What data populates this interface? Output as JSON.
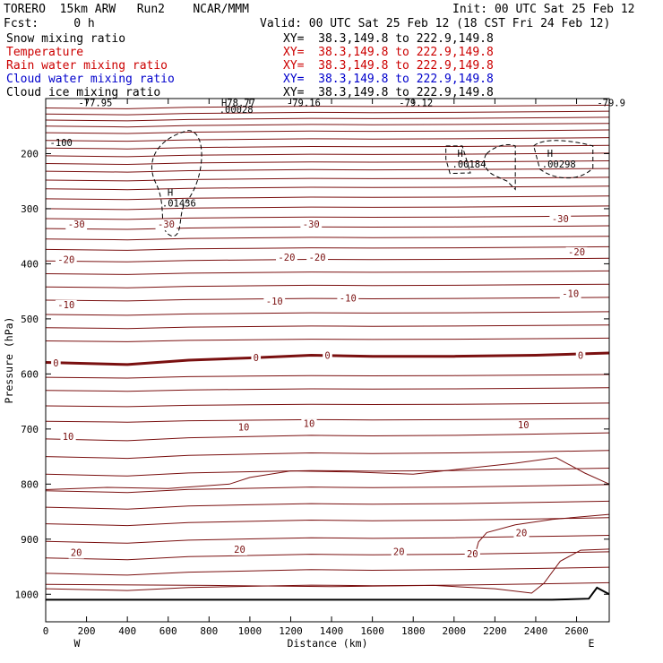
{
  "header": {
    "model": "TORERO  15km ARW   Run2    NCAR/MMM",
    "init": "Init: 00 UTC Sat 25 Feb 12",
    "fcst": "Fcst:     0 h",
    "valid": "Valid: 00 UTC Sat 25 Feb 12 (18 CST Fri 24 Feb 12)"
  },
  "fields": [
    {
      "name": "Snow mixing ratio",
      "xy": "XY=  38.3,149.8 to 222.9,149.8",
      "color": "#000000"
    },
    {
      "name": "Temperature",
      "xy": "XY=  38.3,149.8 to 222.9,149.8",
      "color": "#cc0000"
    },
    {
      "name": "Rain water mixing ratio",
      "xy": "XY=  38.3,149.8 to 222.9,149.8",
      "color": "#cc0000"
    },
    {
      "name": "Cloud water mixing ratio",
      "xy": "XY=  38.3,149.8 to 222.9,149.8",
      "color": "#0000cc"
    },
    {
      "name": "Cloud ice mixing ratio",
      "xy": "XY=  38.3,149.8 to 222.9,149.8",
      "color": "#000000"
    }
  ],
  "colors": {
    "temperature": "#7a1010",
    "ice": "#000000",
    "terrain": "#000000"
  },
  "chart_data": {
    "type": "contour",
    "xlabel": "Distance (km)",
    "ylabel": "Pressure (hPa)",
    "xlim": [
      0,
      2760
    ],
    "ylim": [
      1050,
      100
    ],
    "x_ticks": [
      0,
      200,
      400,
      600,
      800,
      1000,
      1200,
      1400,
      1600,
      1800,
      2000,
      2200,
      2400,
      2600
    ],
    "y_ticks": [
      200,
      300,
      400,
      500,
      600,
      700,
      800,
      900,
      1000
    ],
    "x_end_labels": {
      "left": "W",
      "right": "E"
    },
    "zero_isotherm": [
      [
        0,
        579
      ],
      [
        400,
        583
      ],
      [
        700,
        575
      ],
      [
        1000,
        571
      ],
      [
        1300,
        566
      ],
      [
        1600,
        568
      ],
      [
        2000,
        568
      ],
      [
        2400,
        566
      ],
      [
        2760,
        562
      ]
    ],
    "temperature_labels": [
      {
        "x": 150,
        "p": 328,
        "text": "-30"
      },
      {
        "x": 590,
        "p": 328,
        "text": "-30"
      },
      {
        "x": 1300,
        "p": 328,
        "text": "-30"
      },
      {
        "x": 2520,
        "p": 318,
        "text": "-30"
      },
      {
        "x": 100,
        "p": 392,
        "text": "-20"
      },
      {
        "x": 1180,
        "p": 388,
        "text": "-20"
      },
      {
        "x": 1330,
        "p": 388,
        "text": "-20"
      },
      {
        "x": 2600,
        "p": 378,
        "text": "-20"
      },
      {
        "x": 100,
        "p": 474,
        "text": "-10"
      },
      {
        "x": 1120,
        "p": 468,
        "text": "-10"
      },
      {
        "x": 1480,
        "p": 462,
        "text": "-10"
      },
      {
        "x": 2570,
        "p": 454,
        "text": "-10"
      },
      {
        "x": 50,
        "p": 580,
        "text": "0"
      },
      {
        "x": 1030,
        "p": 570,
        "text": "0"
      },
      {
        "x": 1380,
        "p": 566,
        "text": "0"
      },
      {
        "x": 2620,
        "p": 566,
        "text": "0"
      },
      {
        "x": 110,
        "p": 713,
        "text": "10"
      },
      {
        "x": 970,
        "p": 696,
        "text": "10"
      },
      {
        "x": 1290,
        "p": 690,
        "text": "10"
      },
      {
        "x": 2340,
        "p": 692,
        "text": "10"
      },
      {
        "x": 150,
        "p": 924,
        "text": "20"
      },
      {
        "x": 950,
        "p": 918,
        "text": "20"
      },
      {
        "x": 1730,
        "p": 922,
        "text": "20"
      },
      {
        "x": 2090,
        "p": 926,
        "text": "20"
      },
      {
        "x": 2330,
        "p": 888,
        "text": "20"
      }
    ],
    "ice_maxima": [
      {
        "x": 570,
        "p": 296,
        "text": ".01436"
      },
      {
        "x": 1990,
        "p": 225,
        "text": ".00184"
      },
      {
        "x": 2430,
        "p": 225,
        "text": ".00298"
      }
    ],
    "top_labels": [
      {
        "x": 20,
        "p": 186,
        "text": "-100"
      },
      {
        "x": 160,
        "p": 114,
        "text": "-77.95"
      },
      {
        "x": 860,
        "p": 114,
        "text": "H78.77"
      },
      {
        "x": 850,
        "p": 126,
        "text": ".00028"
      },
      {
        "x": 1180,
        "p": 114,
        "text": "-79.16"
      },
      {
        "x": 1730,
        "p": 114,
        "text": "-79.12"
      },
      {
        "x": 2700,
        "p": 114,
        "text": "-79.9"
      }
    ]
  }
}
